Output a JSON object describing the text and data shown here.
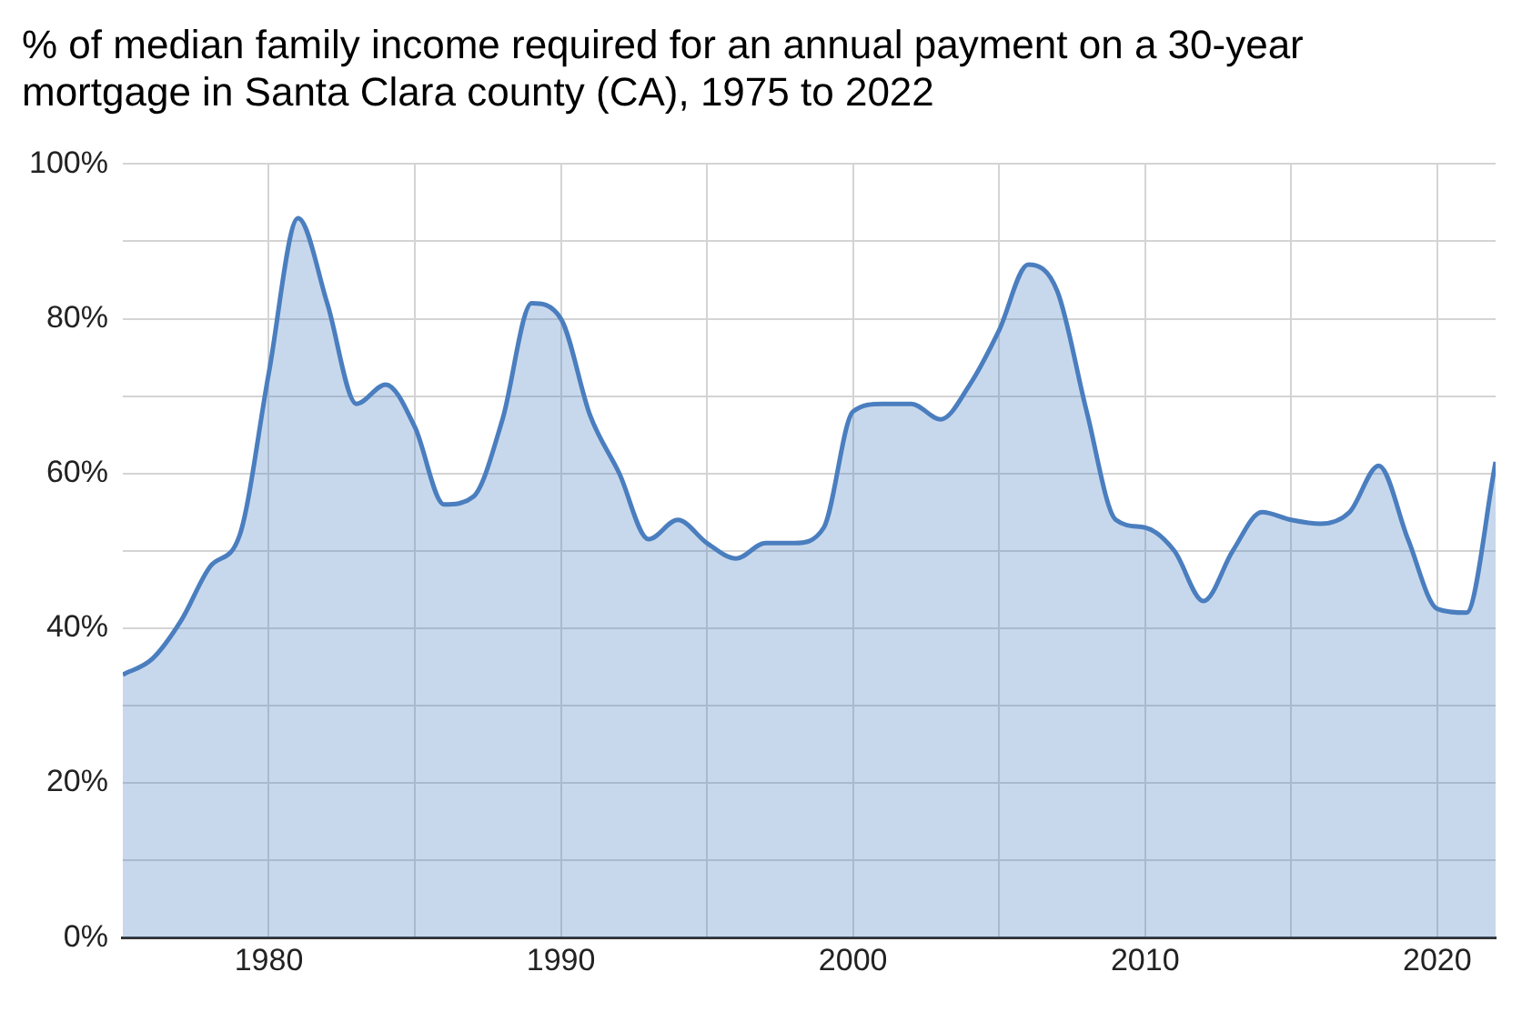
{
  "chart_data": {
    "type": "area",
    "title": "% of median family income required for an annual payment on a 30-year mortgage in Santa Clara county (CA), 1975 to 2022",
    "x": [
      1975,
      1976,
      1977,
      1978,
      1979,
      1980,
      1981,
      1982,
      1983,
      1984,
      1985,
      1986,
      1987,
      1988,
      1989,
      1990,
      1991,
      1992,
      1993,
      1994,
      1995,
      1996,
      1997,
      1998,
      1999,
      2000,
      2001,
      2002,
      2003,
      2004,
      2005,
      2006,
      2007,
      2008,
      2009,
      2010,
      2011,
      2012,
      2013,
      2014,
      2015,
      2016,
      2017,
      2018,
      2019,
      2020,
      2021,
      2022
    ],
    "series": [
      {
        "color": "#4a7ebf",
        "values": [
          34,
          36,
          41,
          48,
          52,
          73,
          93,
          82,
          69,
          71.5,
          66,
          56,
          57,
          67,
          82,
          80,
          67.5,
          60,
          51.5,
          54,
          51,
          49,
          51,
          51,
          53,
          68,
          69,
          69,
          67,
          71.5,
          78.5,
          87,
          83.5,
          68,
          54,
          53,
          50,
          43.5,
          50,
          55,
          54,
          53.5,
          55,
          61,
          51.5,
          42.5,
          42,
          61.5
        ]
      }
    ],
    "xlim": [
      1975,
      2022
    ],
    "xticks": [
      1980,
      {
        "value": 1985,
        "label": null
      },
      1990,
      {
        "value": 1995,
        "label": null
      },
      2000,
      {
        "value": 2005,
        "label": null
      },
      2010,
      {
        "value": 2015,
        "label": null
      },
      2020
    ],
    "ylim": [
      0,
      100
    ],
    "yticks": [
      {
        "value": 0,
        "label": "0%"
      },
      {
        "value": 10,
        "label": null
      },
      {
        "value": 20,
        "label": "20%"
      },
      {
        "value": 30,
        "label": null
      },
      {
        "value": 40,
        "label": "40%"
      },
      {
        "value": 50,
        "label": null
      },
      {
        "value": 60,
        "label": "60%"
      },
      {
        "value": 70,
        "label": null
      },
      {
        "value": 80,
        "label": "80%"
      },
      {
        "value": 90,
        "label": null
      },
      {
        "value": 100,
        "label": "100%"
      }
    ],
    "grid": true,
    "legend": false,
    "marker": "none",
    "line_style": "solid"
  }
}
